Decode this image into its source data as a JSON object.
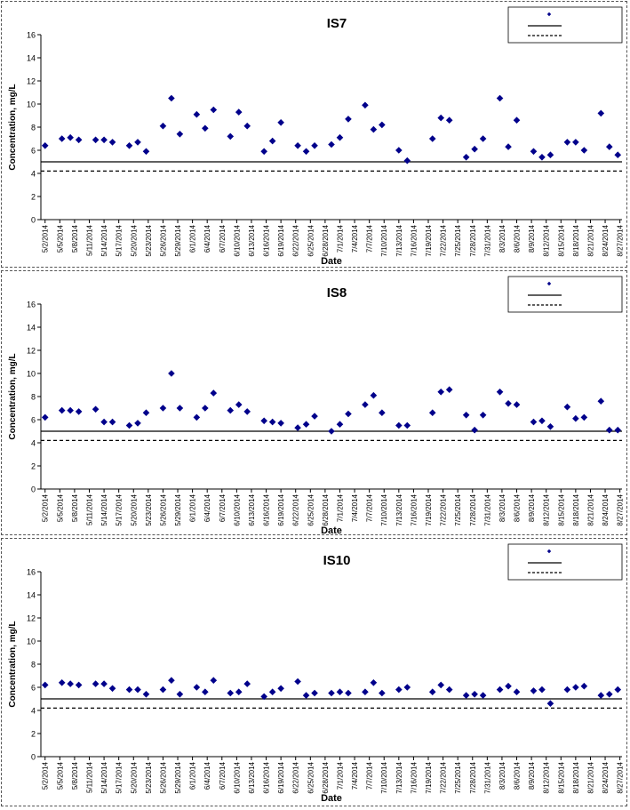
{
  "x_ticks": [
    "5/2/2014",
    "5/5/2014",
    "5/8/2014",
    "5/11/2014",
    "5/14/2014",
    "5/17/2014",
    "5/20/2014",
    "5/23/2014",
    "5/26/2014",
    "5/29/2014",
    "6/1/2014",
    "6/4/2014",
    "6/7/2014",
    "6/10/2014",
    "6/13/2014",
    "6/16/2014",
    "6/19/2014",
    "6/22/2014",
    "6/25/2014",
    "6/28/2014",
    "7/1/2014",
    "7/4/2014",
    "7/7/2014",
    "7/10/2014",
    "7/13/2014",
    "7/16/2014",
    "7/19/2014",
    "7/22/2014",
    "7/25/2014",
    "7/28/2014",
    "7/31/2014",
    "8/3/2014",
    "8/6/2014",
    "8/9/2014",
    "8/12/2014",
    "8/15/2014",
    "8/18/2014",
    "8/21/2014",
    "8/24/2014",
    "8/27/2014"
  ],
  "colors": {
    "marker": "#00008B",
    "line": "#000000",
    "frame": "#555555"
  },
  "chart_data": [
    {
      "type": "scatter",
      "title": "IS7",
      "xlabel": "Date",
      "ylabel": "Concentration, mg/L",
      "ylim": [
        0,
        16
      ],
      "yticks": [
        "0",
        "2",
        "4",
        "6",
        "8",
        "10",
        "12",
        "14",
        "16"
      ],
      "legend_position": "top-right",
      "reference_lines": [
        {
          "style": "solid",
          "value": 5.0
        },
        {
          "style": "dashed",
          "value": 4.2
        }
      ],
      "points": [
        [
          0,
          6.4
        ],
        [
          2,
          7.0
        ],
        [
          3,
          7.1
        ],
        [
          4,
          6.9
        ],
        [
          6,
          6.9
        ],
        [
          7,
          6.9
        ],
        [
          8,
          6.7
        ],
        [
          10,
          6.4
        ],
        [
          11,
          6.7
        ],
        [
          12,
          5.9
        ],
        [
          14,
          8.1
        ],
        [
          15,
          10.5
        ],
        [
          16,
          7.4
        ],
        [
          18,
          9.1
        ],
        [
          19,
          7.9
        ],
        [
          20,
          9.5
        ],
        [
          22,
          7.2
        ],
        [
          23,
          9.3
        ],
        [
          24,
          8.1
        ],
        [
          26,
          5.9
        ],
        [
          27,
          6.8
        ],
        [
          28,
          8.4
        ],
        [
          30,
          6.4
        ],
        [
          31,
          5.9
        ],
        [
          32,
          6.4
        ],
        [
          34,
          6.5
        ],
        [
          35,
          7.1
        ],
        [
          36,
          8.7
        ],
        [
          38,
          9.9
        ],
        [
          39,
          7.8
        ],
        [
          40,
          8.2
        ],
        [
          42,
          6.0
        ],
        [
          43,
          5.1
        ],
        [
          46,
          7.0
        ],
        [
          47,
          8.8
        ],
        [
          48,
          8.6
        ],
        [
          50,
          5.4
        ],
        [
          51,
          6.1
        ],
        [
          52,
          7.0
        ],
        [
          54,
          10.5
        ],
        [
          55,
          6.3
        ],
        [
          56,
          8.6
        ],
        [
          58,
          5.9
        ],
        [
          59,
          5.4
        ],
        [
          60,
          5.6
        ],
        [
          62,
          6.7
        ],
        [
          63,
          6.7
        ],
        [
          64,
          6.0
        ],
        [
          66,
          9.2
        ],
        [
          67,
          6.3
        ],
        [
          68,
          5.6
        ]
      ]
    },
    {
      "type": "scatter",
      "title": "IS8",
      "xlabel": "Date",
      "ylabel": "Concentration, mg/L",
      "ylim": [
        0,
        16
      ],
      "yticks": [
        "0",
        "2",
        "4",
        "6",
        "8",
        "10",
        "12",
        "14",
        "16"
      ],
      "legend_position": "top-right",
      "reference_lines": [
        {
          "style": "solid",
          "value": 5.0
        },
        {
          "style": "dashed",
          "value": 4.2
        }
      ],
      "points": [
        [
          0,
          6.2
        ],
        [
          2,
          6.8
        ],
        [
          3,
          6.8
        ],
        [
          4,
          6.7
        ],
        [
          6,
          6.9
        ],
        [
          7,
          5.8
        ],
        [
          8,
          5.8
        ],
        [
          10,
          5.5
        ],
        [
          11,
          5.7
        ],
        [
          12,
          6.6
        ],
        [
          14,
          7.0
        ],
        [
          15,
          10.0
        ],
        [
          16,
          7.0
        ],
        [
          18,
          6.2
        ],
        [
          19,
          7.0
        ],
        [
          20,
          8.3
        ],
        [
          22,
          6.8
        ],
        [
          23,
          7.3
        ],
        [
          24,
          6.7
        ],
        [
          26,
          5.9
        ],
        [
          27,
          5.8
        ],
        [
          28,
          5.7
        ],
        [
          30,
          5.3
        ],
        [
          31,
          5.6
        ],
        [
          32,
          6.3
        ],
        [
          34,
          5.0
        ],
        [
          35,
          5.6
        ],
        [
          36,
          6.5
        ],
        [
          38,
          7.3
        ],
        [
          39,
          8.1
        ],
        [
          40,
          6.6
        ],
        [
          42,
          5.5
        ],
        [
          43,
          5.5
        ],
        [
          46,
          6.6
        ],
        [
          47,
          8.4
        ],
        [
          48,
          8.6
        ],
        [
          50,
          6.4
        ],
        [
          51,
          5.1
        ],
        [
          52,
          6.4
        ],
        [
          54,
          8.4
        ],
        [
          55,
          7.4
        ],
        [
          56,
          7.3
        ],
        [
          58,
          5.8
        ],
        [
          59,
          5.9
        ],
        [
          60,
          5.4
        ],
        [
          62,
          7.1
        ],
        [
          63,
          6.1
        ],
        [
          64,
          6.2
        ],
        [
          66,
          7.6
        ],
        [
          67,
          5.1
        ],
        [
          68,
          5.1
        ]
      ]
    },
    {
      "type": "scatter",
      "title": "IS10",
      "xlabel": "Date",
      "ylabel": "Concentration, mg/L",
      "ylim": [
        0,
        16
      ],
      "yticks": [
        "0",
        "2",
        "4",
        "6",
        "8",
        "10",
        "12",
        "14",
        "16"
      ],
      "legend_position": "top-right",
      "reference_lines": [
        {
          "style": "solid",
          "value": 5.0
        },
        {
          "style": "dashed",
          "value": 4.2
        }
      ],
      "points": [
        [
          0,
          6.2
        ],
        [
          2,
          6.4
        ],
        [
          3,
          6.3
        ],
        [
          4,
          6.2
        ],
        [
          6,
          6.3
        ],
        [
          7,
          6.3
        ],
        [
          8,
          5.9
        ],
        [
          10,
          5.8
        ],
        [
          11,
          5.8
        ],
        [
          12,
          5.4
        ],
        [
          14,
          5.8
        ],
        [
          15,
          6.6
        ],
        [
          16,
          5.4
        ],
        [
          18,
          6.0
        ],
        [
          19,
          5.6
        ],
        [
          20,
          6.6
        ],
        [
          22,
          5.5
        ],
        [
          23,
          5.6
        ],
        [
          24,
          6.3
        ],
        [
          26,
          5.2
        ],
        [
          27,
          5.6
        ],
        [
          28,
          5.9
        ],
        [
          30,
          6.5
        ],
        [
          31,
          5.3
        ],
        [
          32,
          5.5
        ],
        [
          34,
          5.5
        ],
        [
          35,
          5.6
        ],
        [
          36,
          5.5
        ],
        [
          38,
          5.6
        ],
        [
          39,
          6.4
        ],
        [
          40,
          5.5
        ],
        [
          42,
          5.8
        ],
        [
          43,
          6.0
        ],
        [
          46,
          5.6
        ],
        [
          47,
          6.2
        ],
        [
          48,
          5.8
        ],
        [
          50,
          5.3
        ],
        [
          51,
          5.4
        ],
        [
          52,
          5.3
        ],
        [
          54,
          5.8
        ],
        [
          55,
          6.1
        ],
        [
          56,
          5.6
        ],
        [
          58,
          5.7
        ],
        [
          59,
          5.8
        ],
        [
          60,
          4.6
        ],
        [
          62,
          5.8
        ],
        [
          63,
          6.0
        ],
        [
          64,
          6.1
        ],
        [
          66,
          5.3
        ],
        [
          67,
          5.4
        ],
        [
          68,
          5.8
        ]
      ]
    }
  ]
}
